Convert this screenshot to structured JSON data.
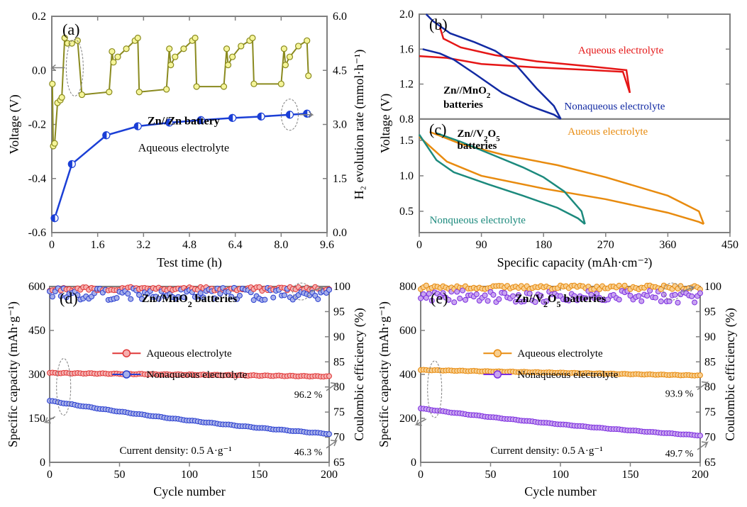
{
  "figure_width": 1053,
  "figure_height": 713,
  "background_color": "#ffffff",
  "panel_a": {
    "letter": "(a)",
    "type": "dual-axis-line",
    "title_anno1": "Zn//Zn battery",
    "title_anno2": "Aqueous electrolyte",
    "x_label": "Test time (h)",
    "y_left_label": "Voltage (V)",
    "y_right_label": "H₂ evolution rate (mmol·h⁻¹)",
    "x_ticks": [
      0,
      1.6,
      3.2,
      4.8,
      6.4,
      8.0,
      9.6
    ],
    "y_left_ticks": [
      -0.6,
      -0.4,
      -0.2,
      0.0,
      0.2
    ],
    "y_right_ticks": [
      0.0,
      1.5,
      3.0,
      4.5,
      6.0
    ],
    "frame_color": "#808080",
    "frame_width": 2,
    "voltage_series": {
      "color": "#8a8a1f",
      "marker_fill": "#f5f59a",
      "marker_stroke": "#8a8a1f",
      "marker_radius": 4,
      "line_width": 2
    },
    "h2_series": {
      "color": "#1b3fd6",
      "marker_fill_left": "#1b3fd6",
      "marker_fill_right": "#ffffff",
      "marker_stroke": "#1b3fd6",
      "marker_radius": 5,
      "line_width": 2.5
    },
    "voltage_points": [
      [
        0.02,
        -0.05
      ],
      [
        0.05,
        -0.28
      ],
      [
        0.1,
        -0.27
      ],
      [
        0.2,
        -0.12
      ],
      [
        0.3,
        -0.11
      ],
      [
        0.35,
        -0.1
      ],
      [
        0.45,
        0.12
      ],
      [
        0.55,
        0.1
      ],
      [
        0.7,
        0.1
      ],
      [
        0.9,
        0.11
      ],
      [
        1.05,
        -0.09
      ],
      [
        2.0,
        -0.08
      ],
      [
        2.1,
        0.07
      ],
      [
        2.15,
        0.03
      ],
      [
        2.3,
        0.05
      ],
      [
        2.6,
        0.08
      ],
      [
        2.9,
        0.11
      ],
      [
        3.0,
        0.12
      ],
      [
        3.05,
        -0.08
      ],
      [
        4.0,
        -0.07
      ],
      [
        4.1,
        0.08
      ],
      [
        4.15,
        0.02
      ],
      [
        4.3,
        0.05
      ],
      [
        4.6,
        0.08
      ],
      [
        4.9,
        0.11
      ],
      [
        5.0,
        0.12
      ],
      [
        5.05,
        -0.06
      ],
      [
        6.0,
        -0.06
      ],
      [
        6.1,
        0.08
      ],
      [
        6.15,
        0.02
      ],
      [
        6.3,
        0.05
      ],
      [
        6.6,
        0.09
      ],
      [
        6.9,
        0.11
      ],
      [
        7.0,
        0.12
      ],
      [
        7.05,
        -0.05
      ],
      [
        8.0,
        -0.05
      ],
      [
        8.1,
        0.08
      ],
      [
        8.15,
        0.02
      ],
      [
        8.3,
        0.05
      ],
      [
        8.6,
        0.09
      ],
      [
        8.9,
        0.11
      ],
      [
        8.95,
        -0.02
      ]
    ],
    "h2_points": [
      [
        0.1,
        0.4
      ],
      [
        0.7,
        1.9
      ],
      [
        1.9,
        2.7
      ],
      [
        3.0,
        2.95
      ],
      [
        4.1,
        3.05
      ],
      [
        5.2,
        3.12
      ],
      [
        6.3,
        3.18
      ],
      [
        7.3,
        3.22
      ],
      [
        8.3,
        3.27
      ],
      [
        8.9,
        3.3
      ]
    ],
    "arrow_color": "#808080"
  },
  "panel_b": {
    "letter": "(b)",
    "type": "line",
    "anno_title": "Zn//MnO₂\nbatteries",
    "anno_aq": "Aqueous electrolyte",
    "anno_nonaq": "Nonaqueous electrolyte",
    "x_label_shared": "Specific capacity (mAh·cm⁻²)",
    "y_label_shared": "Voltage (V)",
    "y_ticks": [
      0.8,
      1.2,
      1.6,
      2.0
    ],
    "x_lim": [
      0,
      450
    ],
    "aq_color": "#e51616",
    "nonaq_color": "#122aa3",
    "line_width": 2.5,
    "aq_curves": [
      [
        [
          0,
          1.52
        ],
        [
          40,
          1.5
        ],
        [
          90,
          1.43
        ],
        [
          170,
          1.39
        ],
        [
          250,
          1.36
        ],
        [
          295,
          1.34
        ],
        [
          305,
          1.1
        ]
      ],
      [
        [
          305,
          1.1
        ],
        [
          300,
          1.36
        ],
        [
          250,
          1.4
        ],
        [
          170,
          1.46
        ],
        [
          110,
          1.53
        ],
        [
          60,
          1.62
        ],
        [
          35,
          1.72
        ],
        [
          30,
          1.85
        ]
      ]
    ],
    "nonaq_curves": [
      [
        [
          5,
          1.6
        ],
        [
          30,
          1.55
        ],
        [
          50,
          1.48
        ],
        [
          80,
          1.32
        ],
        [
          120,
          1.1
        ],
        [
          160,
          0.95
        ],
        [
          195,
          0.85
        ],
        [
          205,
          0.8
        ]
      ],
      [
        [
          205,
          0.8
        ],
        [
          195,
          0.95
        ],
        [
          170,
          1.15
        ],
        [
          140,
          1.42
        ],
        [
          110,
          1.58
        ],
        [
          80,
          1.68
        ],
        [
          45,
          1.78
        ],
        [
          20,
          1.92
        ],
        [
          10,
          2.0
        ]
      ]
    ]
  },
  "panel_c": {
    "letter": "(c)",
    "type": "line",
    "anno_title": "Zn//V₂O₅\nbatteries",
    "anno_aq": "Aueous electrolyte",
    "anno_nonaq": "Nonqueous electrolyte",
    "x_ticks": [
      0,
      90,
      180,
      270,
      360,
      450
    ],
    "y_ticks": [
      0.5,
      1.0,
      1.5
    ],
    "aq_color": "#e88b0f",
    "nonaq_color": "#1c8a7d",
    "line_width": 2.5,
    "aq_curves": [
      [
        [
          0,
          1.55
        ],
        [
          40,
          1.2
        ],
        [
          90,
          1.0
        ],
        [
          180,
          0.82
        ],
        [
          270,
          0.67
        ],
        [
          360,
          0.48
        ],
        [
          405,
          0.35
        ],
        [
          412,
          0.32
        ]
      ],
      [
        [
          412,
          0.32
        ],
        [
          405,
          0.5
        ],
        [
          360,
          0.72
        ],
        [
          270,
          0.98
        ],
        [
          200,
          1.15
        ],
        [
          120,
          1.3
        ],
        [
          60,
          1.45
        ],
        [
          15,
          1.62
        ]
      ]
    ],
    "nonaq_curves": [
      [
        [
          0,
          1.58
        ],
        [
          25,
          1.22
        ],
        [
          50,
          1.05
        ],
        [
          100,
          0.88
        ],
        [
          150,
          0.72
        ],
        [
          200,
          0.55
        ],
        [
          230,
          0.4
        ],
        [
          240,
          0.32
        ]
      ],
      [
        [
          240,
          0.32
        ],
        [
          235,
          0.5
        ],
        [
          210,
          0.78
        ],
        [
          180,
          0.98
        ],
        [
          150,
          1.12
        ],
        [
          110,
          1.28
        ],
        [
          60,
          1.48
        ],
        [
          25,
          1.6
        ]
      ]
    ]
  },
  "panel_d": {
    "letter": "(d)",
    "type": "scatter-dual-axis",
    "anno_title": "Zn//MnO₂ batteries",
    "anno_aq": "Aqueous electrolyte",
    "anno_nonaq": "Nonaqueous electrolyte",
    "anno_current": "Current density: 0.5  A·g⁻¹",
    "retention_aq": "96.2 %",
    "retention_nonaq": "46.3 %",
    "x_label": "Cycle number",
    "y_left_label": "Specific capacity (mAh·g⁻¹)",
    "y_right_label": "Coulombic efficiency (%)",
    "x_ticks": [
      0,
      50,
      100,
      150,
      200
    ],
    "y_left_ticks": [
      0,
      150,
      300,
      450,
      600
    ],
    "y_right_ticks": [
      65,
      70,
      75,
      80,
      85,
      90,
      95,
      100
    ],
    "aq_color": "#e03838",
    "aq_fill": "#f5b0b0",
    "nonaq_color": "#2a3fd0",
    "nonaq_fill": "#a7b0ea",
    "marker_radius": 3.5,
    "aq_capacity_start": 305,
    "aq_capacity_end": 293,
    "nonaq_capacity_start": 210,
    "nonaq_capacity_end": 97,
    "aq_ce": 99.5,
    "nonaq_ce": 98.5
  },
  "panel_e": {
    "letter": "(e)",
    "type": "scatter-dual-axis",
    "anno_title": "Zn//V₂O₅ batteries",
    "anno_aq": "Aqueous electrolyte",
    "anno_nonaq": "Nonaqueous electrolyte",
    "anno_current": "Current density: 0.5  A·g⁻¹",
    "retention_aq": "93.9 %",
    "retention_nonaq": "49.7 %",
    "x_label": "Cycle number",
    "y_left_label": "Specific capacity (mAh·g⁻¹)",
    "y_right_label": "Coulombic efficiency (%)",
    "x_ticks": [
      0,
      50,
      100,
      150,
      200
    ],
    "y_left_ticks": [
      0,
      200,
      400,
      600,
      800
    ],
    "y_right_ticks": [
      65,
      70,
      75,
      80,
      85,
      90,
      95,
      100
    ],
    "aq_color": "#e88b0f",
    "aq_fill": "#f7cf92",
    "nonaq_color": "#7d2fe0",
    "nonaq_fill": "#c9a5f0",
    "marker_radius": 3.5,
    "aq_capacity_start": 420,
    "aq_capacity_end": 395,
    "nonaq_capacity_start": 245,
    "nonaq_capacity_end": 122,
    "aq_ce": 99.8,
    "nonaq_ce": 98.0
  }
}
